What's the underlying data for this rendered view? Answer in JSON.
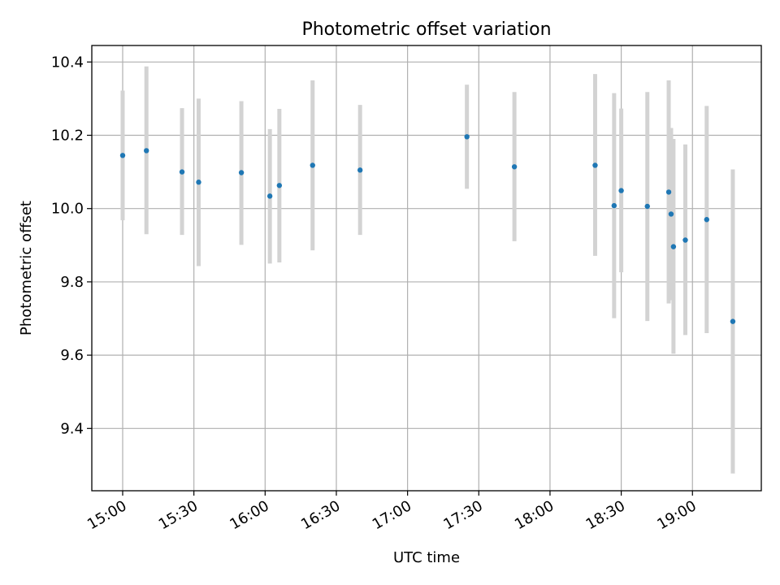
{
  "chart_data": {
    "type": "scatter",
    "title": "Photometric offset variation",
    "xlabel": "UTC time",
    "ylabel": "Photometric offset",
    "x_ticks": [
      "15:00",
      "15:30",
      "16:00",
      "16:30",
      "17:00",
      "17:30",
      "18:00",
      "18:30",
      "19:00"
    ],
    "y_ticks": [
      "9.4",
      "9.6",
      "9.8",
      "10.0",
      "10.2",
      "10.4"
    ],
    "xlim": [
      "14:47",
      "19:29"
    ],
    "ylim": [
      9.23,
      10.445
    ],
    "grid": true,
    "colors": {
      "point": "#1f77b4",
      "errorbar": "#d3d3d3",
      "grid": "#b0b0b0"
    },
    "points": [
      {
        "t": "15:00",
        "y": 10.145,
        "lo": 9.968,
        "hi": 10.322
      },
      {
        "t": "15:10",
        "y": 10.158,
        "lo": 9.93,
        "hi": 10.388
      },
      {
        "t": "15:25",
        "y": 10.1,
        "lo": 9.928,
        "hi": 10.274
      },
      {
        "t": "15:32",
        "y": 10.072,
        "lo": 9.843,
        "hi": 10.3
      },
      {
        "t": "15:50",
        "y": 10.098,
        "lo": 9.901,
        "hi": 10.293
      },
      {
        "t": "16:02",
        "y": 10.034,
        "lo": 9.85,
        "hi": 10.217
      },
      {
        "t": "16:06",
        "y": 10.063,
        "lo": 9.853,
        "hi": 10.272
      },
      {
        "t": "16:20",
        "y": 10.118,
        "lo": 9.886,
        "hi": 10.35
      },
      {
        "t": "16:40",
        "y": 10.105,
        "lo": 9.928,
        "hi": 10.283
      },
      {
        "t": "17:25",
        "y": 10.196,
        "lo": 10.054,
        "hi": 10.338
      },
      {
        "t": "17:45",
        "y": 10.114,
        "lo": 9.911,
        "hi": 10.318
      },
      {
        "t": "18:19",
        "y": 10.118,
        "lo": 9.871,
        "hi": 10.367
      },
      {
        "t": "18:27",
        "y": 10.008,
        "lo": 9.701,
        "hi": 10.315
      },
      {
        "t": "18:30",
        "y": 10.049,
        "lo": 9.826,
        "hi": 10.273
      },
      {
        "t": "18:41",
        "y": 10.006,
        "lo": 9.693,
        "hi": 10.318
      },
      {
        "t": "18:50",
        "y": 10.045,
        "lo": 9.741,
        "hi": 10.35
      },
      {
        "t": "18:51",
        "y": 9.985,
        "lo": 9.75,
        "hi": 10.22
      },
      {
        "t": "18:52",
        "y": 9.896,
        "lo": 9.604,
        "hi": 10.19
      },
      {
        "t": "18:57",
        "y": 9.914,
        "lo": 9.655,
        "hi": 10.175
      },
      {
        "t": "19:06",
        "y": 9.97,
        "lo": 9.66,
        "hi": 10.28
      },
      {
        "t": "19:17",
        "y": 9.692,
        "lo": 9.277,
        "hi": 10.107
      }
    ]
  }
}
